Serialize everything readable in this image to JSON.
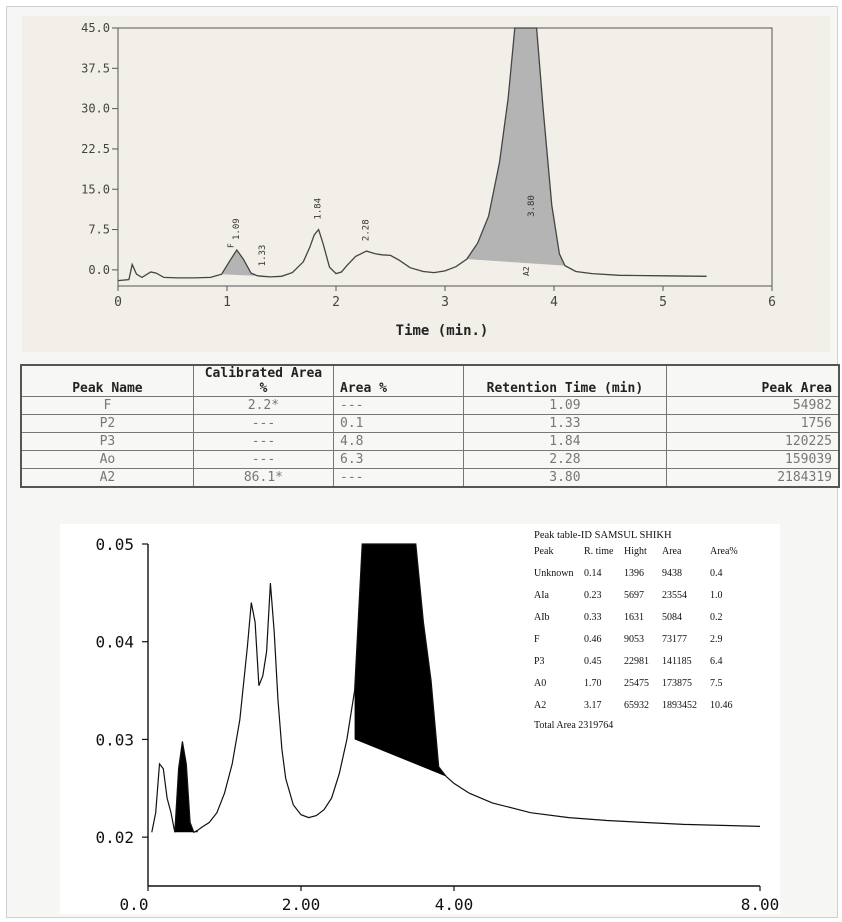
{
  "top_chart": {
    "xlabel": "Time (min.)",
    "x_ticks": [
      "0",
      "1",
      "2",
      "3",
      "4",
      "5",
      "6"
    ],
    "y_ticks": [
      "0.0",
      "7.5",
      "15.0",
      "22.5",
      "30.0",
      "37.5",
      "45.0"
    ],
    "peak_labels": [
      "1.09",
      "1.33",
      "1.84",
      "2.28",
      "3.80"
    ],
    "peak_letters": [
      "F",
      "A2"
    ],
    "colors": {
      "background": "#f2efe9",
      "line": "#444444",
      "fill": "#b4b4b4"
    }
  },
  "table1": {
    "headers": [
      "Peak Name",
      "Calibrated Area %",
      "Area %",
      "Retention Time (min)",
      "Peak Area"
    ],
    "rows": [
      [
        "F",
        "2.2*",
        "---",
        "1.09",
        "54982"
      ],
      [
        "P2",
        "---",
        "0.1",
        "1.33",
        "1756"
      ],
      [
        "P3",
        "---",
        "4.8",
        "1.84",
        "120225"
      ],
      [
        "Ao",
        "---",
        "6.3",
        "2.28",
        "159039"
      ],
      [
        "A2",
        "86.1*",
        "---",
        "3.80",
        "2184319"
      ]
    ]
  },
  "bottom_chart": {
    "x_ticks": [
      "0.0",
      "2.00",
      "4.00",
      "8.00"
    ],
    "y_ticks": [
      "0.02",
      "0.03",
      "0.04",
      "0.05"
    ]
  },
  "table2": {
    "title": "Peak table-ID SAMSUL SHIKH",
    "headers": [
      "Peak",
      "R. time",
      "Hight",
      "Area",
      "Area%"
    ],
    "rows": [
      [
        "Unknown",
        "0.14",
        "1396",
        "9438",
        "0.4"
      ],
      [
        "AIa",
        "0.23",
        "5697",
        "23554",
        "1.0"
      ],
      [
        "AIb",
        "0.33",
        "1631",
        "5084",
        "0.2"
      ],
      [
        "F",
        "0.46",
        "9053",
        "73177",
        "2.9"
      ],
      [
        "P3",
        "0.45",
        "22981",
        "141185",
        "6.4"
      ],
      [
        "A0",
        "1.70",
        "25475",
        "173875",
        "7.5"
      ],
      [
        "A2",
        "3.17",
        "65932",
        "1893452",
        "10.46"
      ]
    ],
    "total": "Total Area 2319764"
  },
  "chart_data": [
    {
      "type": "line",
      "title": "",
      "xlabel": "Time (min.)",
      "ylabel": "",
      "xlim": [
        0,
        6
      ],
      "ylim": [
        -3,
        45
      ],
      "grid": false,
      "series": [
        {
          "x": [
            0.0,
            0.1,
            0.13,
            0.17,
            0.22,
            0.3,
            0.35,
            0.42,
            0.55,
            0.7,
            0.85,
            0.95,
            1.02,
            1.09,
            1.15,
            1.22,
            1.28,
            1.33,
            1.4,
            1.5,
            1.6,
            1.7,
            1.76,
            1.8,
            1.84,
            1.88,
            1.94,
            2.0,
            2.05,
            2.1,
            2.18,
            2.28,
            2.36,
            2.42,
            2.5,
            2.58,
            2.68,
            2.8,
            2.9,
            3.0,
            3.1,
            3.2,
            3.3,
            3.4,
            3.5,
            3.58,
            3.64,
            3.7,
            3.76,
            3.8,
            3.84,
            3.9,
            3.98,
            4.05,
            4.1,
            4.2,
            4.35,
            4.6,
            5.0,
            5.4
          ],
          "y": [
            -2.0,
            -1.8,
            1.0,
            -0.8,
            -1.4,
            -0.4,
            -0.6,
            -1.4,
            -1.5,
            -1.5,
            -1.4,
            -0.8,
            1.5,
            3.7,
            2.0,
            -0.6,
            -1.1,
            -1.2,
            -1.3,
            -1.2,
            -0.5,
            1.5,
            4.2,
            6.5,
            7.5,
            5.0,
            0.5,
            -0.7,
            -0.4,
            0.8,
            2.5,
            3.5,
            3.0,
            2.8,
            2.7,
            1.8,
            0.4,
            -0.3,
            -0.5,
            -0.2,
            0.6,
            2.0,
            5.0,
            10.0,
            20.0,
            32.0,
            45.0,
            45.0,
            45.0,
            45.0,
            45.0,
            30.0,
            12.0,
            3.0,
            0.8,
            -0.3,
            -0.7,
            -1.0,
            -1.1,
            -1.2
          ]
        }
      ]
    },
    {
      "type": "line",
      "title": "",
      "xlabel": "",
      "ylabel": "",
      "xlim": [
        0,
        8
      ],
      "ylim": [
        0.015,
        0.05
      ],
      "grid": false,
      "series": [
        {
          "x": [
            0.05,
            0.1,
            0.15,
            0.2,
            0.25,
            0.3,
            0.35,
            0.4,
            0.45,
            0.5,
            0.55,
            0.6,
            0.65,
            0.7,
            0.8,
            0.9,
            1.0,
            1.1,
            1.2,
            1.3,
            1.35,
            1.4,
            1.45,
            1.5,
            1.55,
            1.6,
            1.65,
            1.7,
            1.75,
            1.8,
            1.9,
            2.0,
            2.1,
            2.2,
            2.3,
            2.4,
            2.5,
            2.6,
            2.7,
            2.8,
            2.9,
            3.0,
            3.1,
            3.2,
            3.3,
            3.4,
            3.5,
            3.6,
            3.7,
            3.8,
            3.9,
            4.0,
            4.2,
            4.5,
            5.0,
            5.5,
            6.0,
            6.5,
            7.0,
            7.5,
            8.0
          ],
          "y": [
            0.0205,
            0.0225,
            0.0275,
            0.027,
            0.024,
            0.0225,
            0.0205,
            0.027,
            0.0298,
            0.0275,
            0.0215,
            0.0205,
            0.0207,
            0.021,
            0.0215,
            0.0225,
            0.0245,
            0.0275,
            0.032,
            0.0395,
            0.044,
            0.042,
            0.0355,
            0.0365,
            0.039,
            0.046,
            0.041,
            0.034,
            0.029,
            0.026,
            0.0233,
            0.0223,
            0.022,
            0.0222,
            0.0228,
            0.024,
            0.0265,
            0.03,
            0.035,
            0.05,
            0.05,
            0.05,
            0.05,
            0.05,
            0.05,
            0.05,
            0.05,
            0.042,
            0.036,
            0.0272,
            0.0262,
            0.0255,
            0.0245,
            0.0235,
            0.0225,
            0.022,
            0.0217,
            0.0215,
            0.0213,
            0.0212,
            0.0211
          ]
        }
      ]
    }
  ]
}
